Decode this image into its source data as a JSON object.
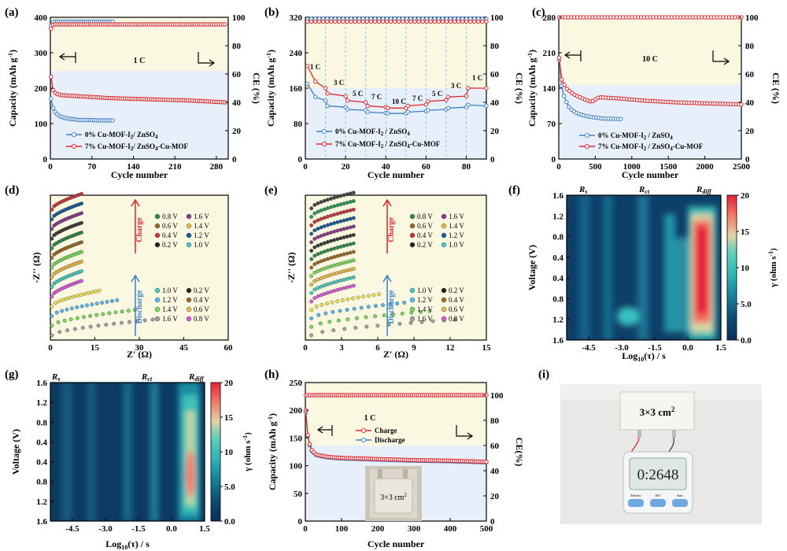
{
  "colors": {
    "blue": "#3b7fc9",
    "red": "#e0252b",
    "bg": "#fbf8e2",
    "bgBlue": "#e7f0fa",
    "cyan": "#7cc9e6"
  },
  "panels": {
    "a": {
      "label": "(a)",
      "title_rate": "1 C",
      "xlabel": "Cycle number",
      "ylabel": "Capacity (mAh g",
      "ylabel_sup": "-1",
      "ylabel_end": ")",
      "ylabel_r": "CE (%)",
      "legend": [
        "0% Cu-MOF-I",
        "/ ZnSO",
        "7% Cu-MOF-I",
        "/ ZnSO",
        "-Cu-MOF"
      ]
    },
    "b": {
      "label": "(b)",
      "xlabel": "Cycle number",
      "ylabel": "Capacity (mAh g",
      "ylabel_sup": "-1",
      "ylabel_end": ")",
      "ylabel_r": "CE (%)",
      "rates": [
        "1 C",
        "3 C",
        "5 C",
        "7 C",
        "10 C",
        "7 C",
        "5 C",
        "3 C",
        "1 C"
      ]
    },
    "c": {
      "label": "(c)",
      "title_rate": "10 C",
      "xlabel": "Cycle number",
      "ylabel": "Capacity (mAh g",
      "ylabel_sup": "-1",
      "ylabel_end": ")",
      "ylabel_r": "CE (%)"
    },
    "d": {
      "label": "(d)",
      "xlabel": "Z' (Ω)",
      "ylabel": "-Z'' (Ω)",
      "charge": "Charge",
      "discharge": "Discharge",
      "charge_legend": [
        "0.8 V",
        "1.6 V",
        "0.6 V",
        "1.4 V",
        "0.4 V",
        "1.2 V",
        "0.2 V",
        "1.0 V"
      ],
      "discharge_legend": [
        "1.0 V",
        "0.2 V",
        "1.2 V",
        "0.4 V",
        "1.4 V",
        "0.6 V",
        "1.6 V",
        "0.8 V"
      ]
    },
    "e": {
      "label": "(e)",
      "xlabel": "Z' (Ω)",
      "ylabel": "-Z'' (Ω)",
      "charge": "Charge",
      "discharge": "Discharge",
      "charge_legend": [
        "0.8 V",
        "1.6 V",
        "0.6 V",
        "1.4 V",
        "0.4 V",
        "1.2 V",
        "0.2 V",
        "1.0 V"
      ],
      "discharge_legend": [
        "1.0 V",
        "0.2 V",
        "1.2 V",
        "0.4 V",
        "1.4 V",
        "0.6 V",
        "1.6 V",
        "0.8 V"
      ]
    },
    "f": {
      "label": "(f)",
      "xlabel": "Log",
      "xlabel_sub": "10",
      "xlabel_end": "(τ) / s",
      "ylabel": "Voltage (V)",
      "cbar_label": "γ (ohm s",
      "cbar_sup": "-1",
      "cbar_end": ")",
      "regions": [
        "R",
        "s",
        "R",
        "ct",
        "R",
        "diff"
      ]
    },
    "g": {
      "label": "(g)",
      "xlabel": "Log",
      "xlabel_sub": "10",
      "xlabel_end": "(τ) / s",
      "ylabel": "Voltage (V)",
      "cbar_label": "γ (ohm s",
      "cbar_sup": "-1",
      "cbar_end": ")",
      "regions": [
        "R",
        "s",
        "R",
        "ct",
        "R",
        "diff"
      ]
    },
    "h": {
      "label": "(h)",
      "title_rate": "1 C",
      "xlabel": "Cycle number",
      "ylabel": "Capacity (mAh g",
      "ylabel_sup": "-1",
      "ylabel_end": ")",
      "ylabel_r": "CE(%)",
      "legend": [
        "Charge",
        "Discharge"
      ],
      "photo_text": "3×3 cm",
      "photo_sup": "2"
    },
    "i": {
      "label": "(i)",
      "pouch_text": "3×3 cm",
      "pouch_sup": "2",
      "timer": "0:2648",
      "buttons": [
        "Min/Sec",
        "SET",
        "Start"
      ]
    }
  },
  "chart_data": [
    {
      "type": "line",
      "id": "a",
      "xlim": [
        0,
        300
      ],
      "ylim": [
        0,
        400
      ],
      "y2lim": [
        0,
        100
      ],
      "xticks": [
        0,
        70,
        140,
        210,
        280
      ],
      "yticks": [
        0,
        100,
        200,
        300,
        400
      ],
      "y2ticks": [
        0,
        20,
        40,
        60,
        80,
        100
      ],
      "series": [
        {
          "name": "0% Cu-MOF-I2 / ZnSO4 capacity",
          "x": [
            1,
            3,
            6,
            10,
            15,
            20,
            30,
            40,
            50,
            60,
            70,
            80,
            90,
            100,
            105
          ],
          "values": [
            170,
            150,
            138,
            128,
            122,
            118,
            114,
            112,
            110,
            110,
            110,
            109,
            109,
            109,
            109
          ]
        },
        {
          "name": "7% Cu-MOF-I2 / ZnSO4-Cu-MOF capacity",
          "x": [
            1,
            3,
            6,
            10,
            20,
            40,
            60,
            80,
            100,
            140,
            180,
            220,
            260,
            295
          ],
          "values": [
            232,
            200,
            190,
            184,
            180,
            178,
            176,
            174,
            172,
            170,
            168,
            166,
            163,
            160
          ]
        },
        {
          "name": "0% CE",
          "x": [
            1,
            5,
            20,
            50,
            105
          ],
          "values": [
            94,
            97,
            97,
            97,
            97
          ]
        },
        {
          "name": "7% CE",
          "x": [
            1,
            5,
            20,
            100,
            200,
            295
          ],
          "values": [
            92,
            95,
            95,
            95,
            95,
            95
          ]
        }
      ]
    },
    {
      "type": "line",
      "id": "b",
      "xlim": [
        0,
        90
      ],
      "ylim": [
        0,
        320
      ],
      "y2lim": [
        0,
        100
      ],
      "xticks": [
        0,
        20,
        40,
        60,
        80
      ],
      "yticks": [
        0,
        80,
        160,
        240,
        320
      ],
      "y2ticks": [
        0,
        20,
        40,
        60,
        80,
        100
      ],
      "series": [
        {
          "name": "0% Cu-MOF-I2 / ZnSO4 capacity",
          "x": [
            1,
            5,
            10,
            11,
            20,
            21,
            30,
            31,
            40,
            41,
            50,
            51,
            60,
            61,
            70,
            71,
            80,
            81,
            90
          ],
          "values": [
            170,
            140,
            132,
            120,
            117,
            112,
            110,
            106,
            104,
            103,
            103,
            106,
            108,
            110,
            112,
            115,
            117,
            122,
            120
          ]
        },
        {
          "name": "7% Cu-MOF-I2 / ZnSO4-Cu-MOF capacity",
          "x": [
            1,
            5,
            10,
            11,
            20,
            21,
            30,
            31,
            40,
            41,
            50,
            51,
            60,
            61,
            70,
            71,
            80,
            81,
            90
          ],
          "values": [
            210,
            175,
            160,
            148,
            142,
            132,
            128,
            120,
            117,
            115,
            115,
            120,
            123,
            130,
            133,
            140,
            142,
            160,
            160
          ]
        },
        {
          "name": "0% CE",
          "x": [
            1,
            90
          ],
          "values": [
            99,
            99
          ]
        },
        {
          "name": "7% CE",
          "x": [
            1,
            90
          ],
          "values": [
            97,
            97
          ]
        }
      ]
    },
    {
      "type": "line",
      "id": "c",
      "xlim": [
        0,
        2500
      ],
      "ylim": [
        0,
        280
      ],
      "y2lim": [
        0,
        100
      ],
      "xticks": [
        0,
        500,
        1000,
        1500,
        2000,
        2500
      ],
      "yticks": [
        0,
        70,
        140,
        210,
        280
      ],
      "y2ticks": [
        0,
        20,
        40,
        60,
        80,
        100
      ],
      "series": [
        {
          "name": "0% Cu-MOF-I2 / ZnSO4 capacity",
          "x": [
            5,
            30,
            80,
            150,
            250,
            400,
            600,
            850
          ],
          "values": [
            195,
            150,
            120,
            100,
            90,
            84,
            80,
            79
          ]
        },
        {
          "name": "7% Cu-MOF-I2 / ZnSO4-Cu-MOF capacity",
          "x": [
            5,
            30,
            100,
            200,
            350,
            450,
            550,
            800,
            1200,
            1600,
            2000,
            2500
          ],
          "values": [
            200,
            160,
            140,
            128,
            118,
            113,
            122,
            120,
            115,
            112,
            110,
            108
          ]
        },
        {
          "name": "CE",
          "x": [
            5,
            2500
          ],
          "values": [
            100,
            100
          ]
        }
      ]
    },
    {
      "type": "scatter",
      "id": "d",
      "xlim": [
        0,
        60
      ],
      "xticks": [
        0,
        15,
        30,
        45,
        60
      ],
      "curves": 14
    },
    {
      "type": "scatter",
      "id": "e",
      "xlim": [
        0,
        15
      ],
      "xticks": [
        0,
        3,
        6,
        9,
        12,
        15
      ],
      "curves": 16
    },
    {
      "type": "heatmap",
      "id": "f",
      "xlim": [
        -5.5,
        1.5
      ],
      "xticks": [
        -4.5,
        -3.0,
        -1.5,
        0.0,
        1.5
      ],
      "yticklabels": [
        "1.6",
        "1.2",
        "0.8",
        "0.4",
        "0.4",
        "0.8",
        "1.2",
        "1.6"
      ],
      "crange": [
        0,
        20
      ],
      "cticks": [
        0.0,
        5.0,
        10,
        15,
        20
      ]
    },
    {
      "type": "heatmap",
      "id": "g",
      "xlim": [
        -5.5,
        1.5
      ],
      "xticks": [
        -4.5,
        -3.0,
        -1.5,
        0.0,
        1.5
      ],
      "yticklabels": [
        "1.6",
        "1.2",
        "0.8",
        "0.4",
        "0.4",
        "0.8",
        "1.2",
        "1.6"
      ],
      "crange": [
        0,
        20
      ],
      "cticks": [
        0.0,
        5.0,
        10,
        15,
        20
      ]
    },
    {
      "type": "line",
      "id": "h",
      "xlim": [
        0,
        500
      ],
      "ylim": [
        0,
        250
      ],
      "y2lim": [
        0,
        110
      ],
      "xticks": [
        0,
        100,
        200,
        300,
        400,
        500
      ],
      "yticks": [
        0,
        50,
        100,
        150,
        200,
        250
      ],
      "y2ticks": [
        0,
        20,
        40,
        60,
        80,
        100
      ],
      "series": [
        {
          "name": "Charge",
          "x": [
            1,
            5,
            15,
            30,
            60,
            100,
            150,
            200,
            300,
            400,
            500
          ],
          "values": [
            200,
            160,
            130,
            120,
            116,
            114,
            113,
            112,
            110,
            109,
            107
          ]
        },
        {
          "name": "Discharge",
          "x": [
            1,
            5,
            15,
            30,
            60,
            100,
            150,
            200,
            300,
            400,
            500
          ],
          "values": [
            196,
            158,
            128,
            119,
            115,
            113,
            112,
            111,
            109,
            108,
            106
          ]
        },
        {
          "name": "CE",
          "x": [
            1,
            500
          ],
          "values": [
            100,
            100
          ]
        }
      ]
    }
  ]
}
